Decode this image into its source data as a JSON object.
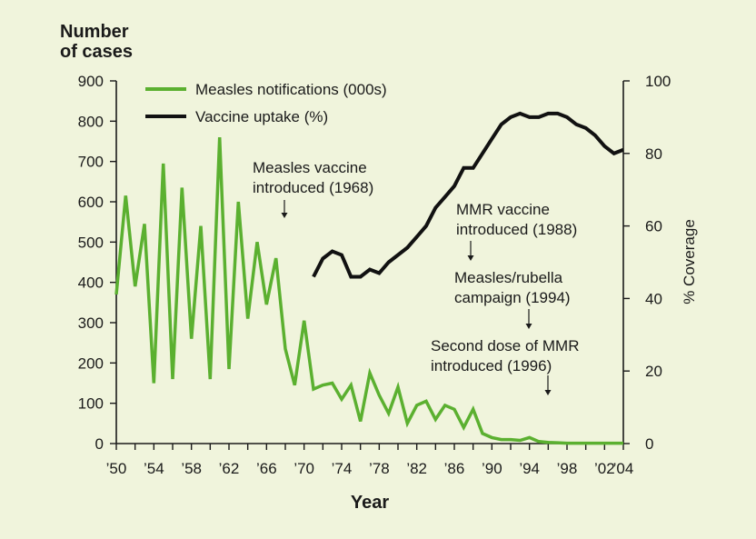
{
  "chart_data": {
    "type": "line",
    "ylabel_left": [
      "Number",
      "of cases"
    ],
    "ylabel_right": "% Coverage",
    "xlabel": "Year",
    "xlim": [
      1950,
      2004
    ],
    "ylim_left": [
      0,
      900
    ],
    "ylim_right": [
      0,
      100
    ],
    "x_ticks": [
      1950,
      1954,
      1958,
      1962,
      1966,
      1970,
      1974,
      1978,
      1982,
      1986,
      1990,
      1994,
      1998,
      2002,
      2004
    ],
    "x_tick_labels": [
      "’50",
      "’54",
      "’58",
      "’62",
      "’66",
      "’70",
      "’74",
      "’78",
      "’82",
      "’86",
      "’90",
      "’94",
      "’98",
      "’02",
      "’04"
    ],
    "y_ticks_left": [
      0,
      100,
      200,
      300,
      400,
      500,
      600,
      700,
      800,
      900
    ],
    "y_tick_labels_left": [
      "0",
      "100",
      "200",
      "300",
      "400",
      "500",
      "600",
      "700",
      "800",
      "900"
    ],
    "y_ticks_right": [
      0,
      20,
      40,
      60,
      80,
      100
    ],
    "y_tick_labels_right": [
      "0",
      "20",
      "40",
      "60",
      "80",
      "100"
    ],
    "legend": {
      "placement": "top-left"
    },
    "series": [
      {
        "name": "Measles notifications (000s)",
        "axis": "left",
        "color": "#5bb030",
        "x": [
          1950,
          1951,
          1952,
          1953,
          1954,
          1955,
          1956,
          1957,
          1958,
          1959,
          1960,
          1961,
          1962,
          1963,
          1964,
          1965,
          1966,
          1967,
          1968,
          1969,
          1970,
          1971,
          1972,
          1973,
          1974,
          1975,
          1976,
          1977,
          1978,
          1979,
          1980,
          1981,
          1982,
          1983,
          1984,
          1985,
          1986,
          1987,
          1988,
          1989,
          1990,
          1991,
          1992,
          1993,
          1994,
          1995,
          1996,
          1997,
          1998,
          1999,
          2000,
          2001,
          2002,
          2003,
          2004
        ],
        "values": [
          370,
          615,
          390,
          545,
          150,
          695,
          160,
          635,
          260,
          540,
          160,
          760,
          185,
          600,
          310,
          500,
          345,
          460,
          235,
          145,
          305,
          135,
          145,
          150,
          110,
          145,
          55,
          175,
          120,
          75,
          140,
          50,
          95,
          105,
          60,
          95,
          85,
          40,
          85,
          25,
          15,
          10,
          10,
          8,
          15,
          5,
          3,
          2,
          1,
          1,
          1,
          1,
          1,
          1,
          1
        ]
      },
      {
        "name": "Vaccine uptake (%)",
        "axis": "right",
        "color": "#111111",
        "x": [
          1971,
          1972,
          1973,
          1974,
          1975,
          1976,
          1977,
          1978,
          1979,
          1980,
          1981,
          1982,
          1983,
          1984,
          1985,
          1986,
          1987,
          1988,
          1989,
          1990,
          1991,
          1992,
          1993,
          1994,
          1995,
          1996,
          1997,
          1998,
          1999,
          2000,
          2001,
          2002,
          2003,
          2004
        ],
        "values": [
          46,
          51,
          53,
          52,
          46,
          46,
          48,
          47,
          50,
          52,
          54,
          57,
          60,
          65,
          68,
          71,
          76,
          76,
          80,
          84,
          88,
          90,
          91,
          90,
          90,
          91,
          91,
          90,
          88,
          87,
          85,
          82,
          80,
          81
        ]
      }
    ],
    "annotations": [
      {
        "lines": [
          "Measles vaccine",
          "introduced (1968)"
        ],
        "arrow_year": 1968
      },
      {
        "lines": [
          "MMR vaccine",
          "introduced (1988)"
        ],
        "arrow_year": 1988
      },
      {
        "lines": [
          "Measles/rubella",
          "campaign (1994)"
        ],
        "arrow_year": 1994
      },
      {
        "lines": [
          "Second dose of MMR",
          "introduced (1996)"
        ],
        "arrow_year": 1996
      }
    ]
  }
}
